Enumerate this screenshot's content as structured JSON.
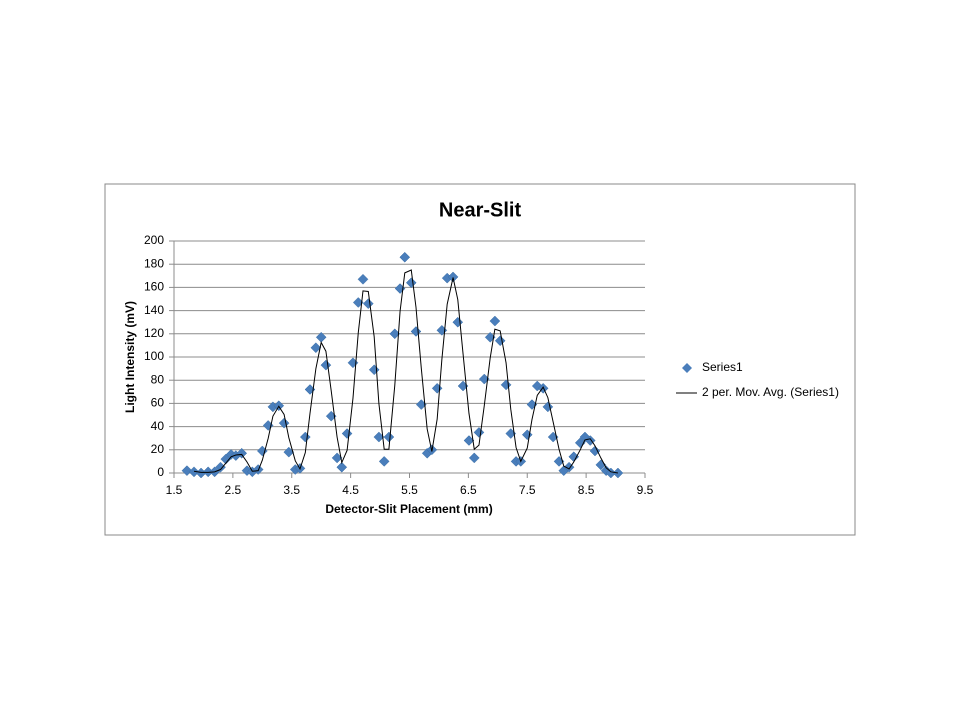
{
  "chart_data": {
    "type": "scatter",
    "title": "Near-Slit",
    "x_label": "Detector-Slit Placement (mm)",
    "y_label": "Light Intensity (mV)",
    "x": [
      1.72,
      1.84,
      1.96,
      2.08,
      2.19,
      2.29,
      2.38,
      2.47,
      2.55,
      2.65,
      2.74,
      2.83,
      2.93,
      3,
      3.1,
      3.18,
      3.28,
      3.37,
      3.45,
      3.56,
      3.64,
      3.73,
      3.81,
      3.91,
      4,
      4.08,
      4.17,
      4.27,
      4.35,
      4.44,
      4.54,
      4.63,
      4.71,
      4.8,
      4.9,
      4.98,
      5.07,
      5.15,
      5.25,
      5.34,
      5.42,
      5.53,
      5.61,
      5.7,
      5.8,
      5.88,
      5.97,
      6.05,
      6.14,
      6.24,
      6.32,
      6.41,
      6.51,
      6.6,
      6.68,
      6.77,
      6.87,
      6.95,
      7.04,
      7.14,
      7.22,
      7.31,
      7.39,
      7.5,
      7.58,
      7.67,
      7.77,
      7.85,
      7.94,
      8.04,
      8.12,
      8.21,
      8.29,
      8.4,
      8.48,
      8.57,
      8.65,
      8.75,
      8.84,
      8.92,
      9.04
    ],
    "series": [
      {
        "name": "Series1",
        "style": "marker",
        "color": "#4a7ebb",
        "values": [
          2,
          1,
          0,
          1,
          1,
          5,
          12,
          16,
          15,
          17,
          2,
          1,
          3,
          19,
          41,
          57,
          58,
          43,
          18,
          3,
          4,
          31,
          72,
          108,
          117,
          93,
          49,
          13,
          5,
          34,
          95,
          147,
          167,
          146,
          89,
          31,
          10,
          31,
          120,
          159,
          186,
          164,
          122,
          59,
          17,
          20,
          73,
          123,
          168,
          169,
          130,
          75,
          28,
          13,
          35,
          81,
          117,
          131,
          114,
          76,
          34,
          10,
          10,
          33,
          59,
          75,
          73,
          57,
          31,
          10,
          2,
          5,
          14,
          26,
          31,
          28,
          19,
          7,
          2,
          0,
          0
        ]
      },
      {
        "name": "2 per. Mov. Avg. (Series1)",
        "style": "line",
        "color": "#000000",
        "values": [
          null,
          1.5,
          0.5,
          0.5,
          1,
          3,
          8.5,
          14,
          15.5,
          16,
          9.5,
          1.5,
          2,
          11,
          30,
          49,
          57.5,
          50.5,
          30.5,
          10.5,
          3.5,
          17.5,
          51.5,
          90,
          112.5,
          105,
          71,
          31,
          9,
          19.5,
          64.5,
          121,
          157,
          156.5,
          117.5,
          60,
          20.5,
          20.5,
          75.5,
          139.5,
          172.5,
          175,
          143,
          90.5,
          38,
          18.5,
          46.5,
          98,
          145.5,
          168.5,
          149.5,
          102.5,
          51.5,
          20.5,
          24,
          58,
          99,
          124,
          122.5,
          95,
          55,
          22,
          10,
          21.5,
          46,
          67,
          74,
          65,
          44,
          20.5,
          6,
          3.5,
          9.5,
          20,
          28.5,
          29.5,
          23.5,
          13,
          4.5,
          1,
          0
        ]
      }
    ],
    "xlim": [
      1.5,
      9.5
    ],
    "xticks": [
      1.5,
      2.5,
      3.5,
      4.5,
      5.5,
      6.5,
      7.5,
      8.5,
      9.5
    ],
    "ylim": [
      0,
      200
    ],
    "yticks": [
      0,
      20,
      40,
      60,
      80,
      100,
      120,
      140,
      160,
      180,
      200
    ],
    "grid": true,
    "legend": "right"
  }
}
